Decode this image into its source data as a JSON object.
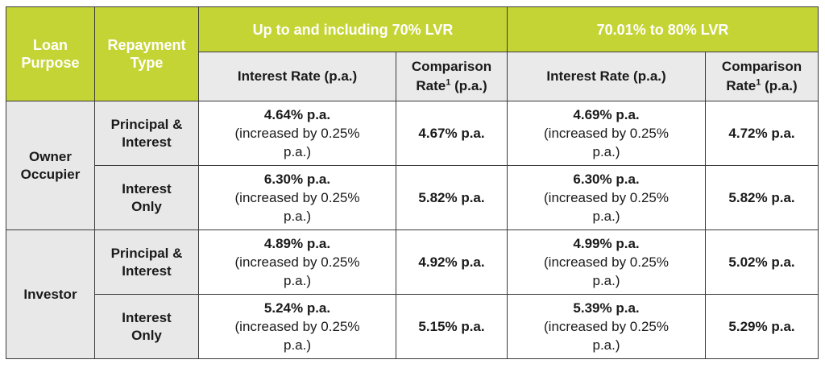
{
  "header": {
    "loan_purpose": [
      "Loan",
      "Purpose"
    ],
    "repayment_type": [
      "Repayment",
      "Type"
    ],
    "group_1": "Up to and including 70% LVR",
    "group_2": "70.01% to 80% LVR",
    "interest_rate": "Interest Rate (p.a.)",
    "comparison_rate_line1": "Comparison",
    "comparison_rate_word": "Rate",
    "comparison_rate_sup": "1",
    "comparison_rate_suffix": "(p.a.)"
  },
  "purposes": [
    {
      "name": [
        "Owner",
        "Occupier"
      ]
    },
    {
      "name": [
        "Investor"
      ]
    }
  ],
  "rows": [
    {
      "repayment": [
        "Principal &",
        "Interest"
      ],
      "lvr70": {
        "rate": "4.64% p.a.",
        "note": [
          "(increased by 0.25%",
          "p.a.)"
        ],
        "comparison": "4.67% p.a."
      },
      "lvr80": {
        "rate": "4.69% p.a.",
        "note": [
          "(increased by 0.25%",
          "p.a.)"
        ],
        "comparison": "4.72% p.a."
      }
    },
    {
      "repayment": [
        "Interest",
        "Only"
      ],
      "lvr70": {
        "rate": "6.30% p.a.",
        "note": [
          "(increased by 0.25%",
          "p.a.)"
        ],
        "comparison": "5.82% p.a."
      },
      "lvr80": {
        "rate": "6.30% p.a.",
        "note": [
          "(increased by 0.25%",
          "p.a.)"
        ],
        "comparison": "5.82% p.a."
      }
    },
    {
      "repayment": [
        "Principal &",
        "Interest"
      ],
      "lvr70": {
        "rate": "4.89% p.a.",
        "note": [
          "(increased by 0.25%",
          "p.a.)"
        ],
        "comparison": "4.92% p.a."
      },
      "lvr80": {
        "rate": "4.99% p.a.",
        "note": [
          "(increased by 0.25%",
          "p.a.)"
        ],
        "comparison": "5.02% p.a."
      }
    },
    {
      "repayment": [
        "Interest",
        "Only"
      ],
      "lvr70": {
        "rate": "5.24% p.a.",
        "note": [
          "(increased by 0.25%",
          "p.a.)"
        ],
        "comparison": "5.15% p.a."
      },
      "lvr80": {
        "rate": "5.39% p.a.",
        "note": [
          "(increased by 0.25%",
          "p.a.)"
        ],
        "comparison": "5.29% p.a."
      }
    }
  ],
  "colors": {
    "header_green": "#c5d435",
    "header_grey": "#eaeaea",
    "label_grey": "#e8e8e8"
  }
}
